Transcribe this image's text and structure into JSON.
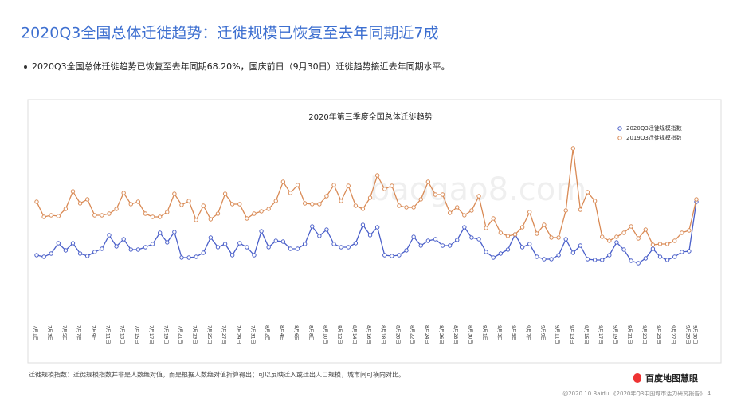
{
  "header": {
    "title": "2020Q3全国总体迁徙趋势：迁徙规模已恢复至去年同期近7成",
    "bullet": "2020Q3全国总体迁徙趋势已恢复至去年同期68.20%，国庆前日（9月30日）迁徙趋势接近去年同期水平。"
  },
  "chart_data": {
    "type": "line",
    "title": "2020年第三季度全国总体迁徙趋势",
    "categories": [
      "7月1日",
      null,
      "7月3日",
      null,
      "7月5日",
      null,
      "7月7日",
      null,
      "7月9日",
      null,
      "7月11日",
      null,
      "7月13日",
      null,
      "7月15日",
      null,
      "7月17日",
      null,
      "7月19日",
      null,
      "7月21日",
      null,
      "7月23日",
      null,
      "7月25日",
      null,
      "7月27日",
      null,
      "7月29日",
      null,
      "7月31日",
      null,
      "8月2日",
      null,
      "8月4日",
      null,
      "8月6日",
      null,
      "8月8日",
      null,
      "8月10日",
      null,
      "8月12日",
      null,
      "8月14日",
      null,
      "8月16日",
      null,
      "8月18日",
      null,
      "8月20日",
      null,
      "8月22日",
      null,
      "8月24日",
      null,
      "8月26日",
      null,
      "8月28日",
      null,
      "8月30日",
      null,
      "9月1日",
      null,
      "9月3日",
      null,
      "9月5日",
      null,
      "9月7日",
      null,
      "9月9日",
      null,
      "9月11日",
      null,
      "9月13日",
      null,
      "9月15日",
      null,
      "9月17日",
      null,
      "9月19日",
      null,
      "9月21日",
      null,
      "9月23日",
      null,
      "9月25日",
      null,
      "9月27日",
      null,
      "9月29日",
      "9月30日"
    ],
    "series": [
      {
        "name": "2020Q3迁徙规模指数",
        "color": "#4a5fc9",
        "values": [
          90,
          88,
          92,
          105,
          96,
          105,
          92,
          89,
          94,
          98,
          115,
          101,
          110,
          97,
          97,
          100,
          104,
          118,
          106,
          119,
          87,
          87,
          88,
          93,
          112,
          100,
          104,
          90,
          105,
          100,
          90,
          120,
          100,
          108,
          107,
          98,
          98,
          104,
          126,
          114,
          122,
          104,
          100,
          100,
          105,
          128,
          115,
          125,
          90,
          89,
          90,
          96,
          113,
          102,
          108,
          110,
          102,
          102,
          109,
          125,
          112,
          110,
          94,
          87,
          92,
          97,
          116,
          100,
          104,
          88,
          85,
          85,
          90,
          110,
          93,
          102,
          85,
          84,
          84,
          90,
          106,
          97,
          83,
          80,
          86,
          98,
          88,
          84,
          88,
          94,
          95,
          157
        ]
      },
      {
        "name": "2019Q3迁徙规模指数",
        "color": "#d98a55",
        "values": [
          157,
          138,
          140,
          139,
          148,
          170,
          155,
          160,
          140,
          140,
          142,
          148,
          168,
          154,
          157,
          142,
          138,
          138,
          144,
          167,
          153,
          158,
          134,
          152,
          135,
          142,
          167,
          154,
          154,
          136,
          142,
          145,
          148,
          158,
          182,
          168,
          178,
          155,
          154,
          154,
          164,
          178,
          158,
          177,
          152,
          148,
          162,
          190,
          173,
          177,
          152,
          150,
          150,
          160,
          182,
          166,
          166,
          143,
          150,
          140,
          146,
          164,
          124,
          136,
          118,
          114,
          116,
          125,
          144,
          117,
          128,
          112,
          112,
          146,
          224,
          147,
          169,
          158,
          113,
          108,
          113,
          118,
          126,
          111,
          122,
          103,
          104,
          104,
          108,
          118,
          121,
          160
        ]
      }
    ],
    "ylim": [
      0,
      260
    ],
    "legend": "upper right"
  },
  "footer": {
    "note": "迁徙规模指数：迁徙规模指数并非是人数绝对值，而是根据人数绝对值折算得出；可以反映迁入或迁出人口规模，城市间可横向对比。",
    "logo": "百度地图慧眼",
    "credit": "@2020.10 Baidu 《2020年Q3中国城市活力研究报告》 4",
    "watermark": "baogao8.com"
  }
}
